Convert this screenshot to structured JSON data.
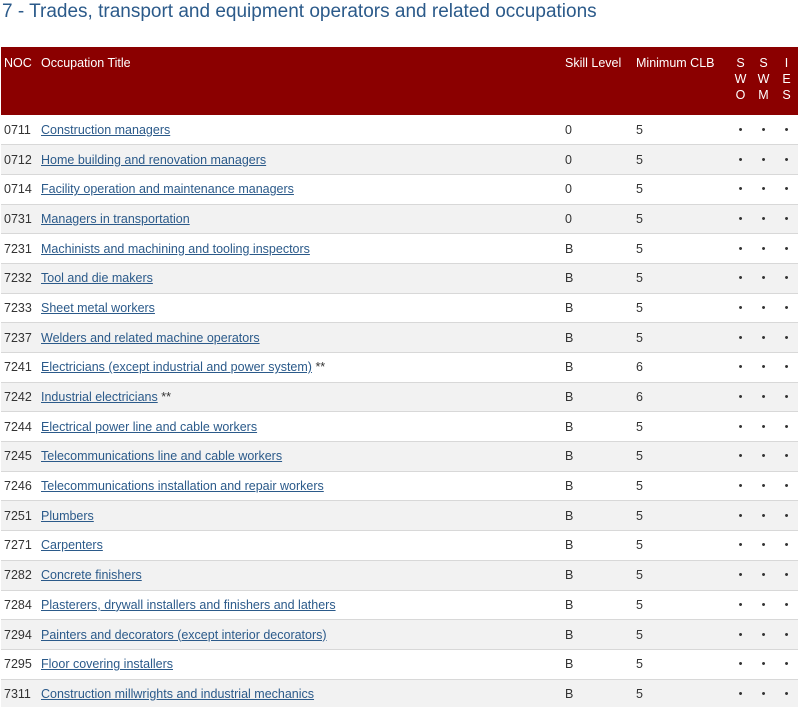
{
  "page": {
    "title": "7 - Trades, transport and equipment operators and related occupations"
  },
  "table": {
    "headers": {
      "noc": "NOC",
      "occupation": "Occupation Title",
      "skill": "Skill Level",
      "clb": "Minimum CLB",
      "flag1": [
        "S",
        "W",
        "O"
      ],
      "flag2": [
        "S",
        "W",
        "M"
      ],
      "flag3": [
        "I",
        "E",
        "S"
      ]
    },
    "rows": [
      {
        "noc": "0711",
        "title": "Construction managers",
        "marker": "",
        "skill": "0",
        "clb": "5",
        "flags": [
          "•",
          "•",
          "•"
        ]
      },
      {
        "noc": "0712",
        "title": "Home building and renovation managers",
        "marker": "",
        "skill": "0",
        "clb": "5",
        "flags": [
          "•",
          "•",
          "•"
        ]
      },
      {
        "noc": "0714",
        "title": "Facility operation and maintenance managers",
        "marker": "",
        "skill": "0",
        "clb": "5",
        "flags": [
          "•",
          "•",
          "•"
        ]
      },
      {
        "noc": "0731",
        "title": "Managers in transportation",
        "marker": "",
        "skill": "0",
        "clb": "5",
        "flags": [
          "•",
          "•",
          "•"
        ]
      },
      {
        "noc": "7231",
        "title": "Machinists and machining and tooling inspectors",
        "marker": "",
        "skill": "B",
        "clb": "5",
        "flags": [
          "•",
          "•",
          "•"
        ]
      },
      {
        "noc": "7232",
        "title": "Tool and die makers",
        "marker": "",
        "skill": "B",
        "clb": "5",
        "flags": [
          "•",
          "•",
          "•"
        ]
      },
      {
        "noc": "7233",
        "title": "Sheet metal workers",
        "marker": "",
        "skill": "B",
        "clb": "5",
        "flags": [
          "•",
          "•",
          "•"
        ]
      },
      {
        "noc": "7237",
        "title": "Welders and related machine operators",
        "marker": "",
        "skill": "B",
        "clb": "5",
        "flags": [
          "•",
          "•",
          "•"
        ]
      },
      {
        "noc": "7241",
        "title": "Electricians (except industrial and power system)",
        "marker": "**",
        "skill": "B",
        "clb": "6",
        "flags": [
          "•",
          "•",
          "•"
        ]
      },
      {
        "noc": "7242",
        "title": "Industrial electricians",
        "marker": "**",
        "skill": "B",
        "clb": "6",
        "flags": [
          "•",
          "•",
          "•"
        ]
      },
      {
        "noc": "7244",
        "title": "Electrical power line and cable workers",
        "marker": "",
        "skill": "B",
        "clb": "5",
        "flags": [
          "•",
          "•",
          "•"
        ]
      },
      {
        "noc": "7245",
        "title": "Telecommunications line and cable workers",
        "marker": "",
        "skill": "B",
        "clb": "5",
        "flags": [
          "•",
          "•",
          "•"
        ]
      },
      {
        "noc": "7246",
        "title": "Telecommunications installation and repair workers",
        "marker": "",
        "skill": "B",
        "clb": "5",
        "flags": [
          "•",
          "•",
          "•"
        ]
      },
      {
        "noc": "7251",
        "title": "Plumbers",
        "marker": "",
        "skill": "B",
        "clb": "5",
        "flags": [
          "•",
          "•",
          "•"
        ]
      },
      {
        "noc": "7271",
        "title": "Carpenters",
        "marker": "",
        "skill": "B",
        "clb": "5",
        "flags": [
          "•",
          "•",
          "•"
        ]
      },
      {
        "noc": "7282",
        "title": "Concrete finishers",
        "marker": "",
        "skill": "B",
        "clb": "5",
        "flags": [
          "•",
          "•",
          "•"
        ]
      },
      {
        "noc": "7284",
        "title": "Plasterers, drywall installers and finishers and lathers",
        "marker": "",
        "skill": "B",
        "clb": "5",
        "flags": [
          "•",
          "•",
          "•"
        ]
      },
      {
        "noc": "7294",
        "title": "Painters and decorators (except interior decorators)",
        "marker": "",
        "skill": "B",
        "clb": "5",
        "flags": [
          "•",
          "•",
          "•"
        ]
      },
      {
        "noc": "7295",
        "title": "Floor covering installers",
        "marker": "",
        "skill": "B",
        "clb": "5",
        "flags": [
          "•",
          "•",
          "•"
        ]
      },
      {
        "noc": "7311",
        "title": "Construction millwrights and industrial mechanics",
        "marker": "",
        "skill": "B",
        "clb": "5",
        "flags": [
          "•",
          "•",
          "•"
        ]
      }
    ]
  },
  "colors": {
    "header_bg": "#8b0000",
    "link": "#2b5a8a",
    "title": "#2b5a8a",
    "stripe": "#f2f2f2"
  }
}
